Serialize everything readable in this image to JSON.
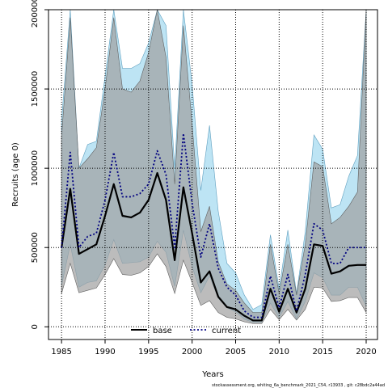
{
  "chart_data": {
    "type": "area",
    "xlabel": "Years",
    "ylabel": "Recruits (age 0)",
    "xlim": [
      1983.5,
      2021.3
    ],
    "ylim": [
      -80000,
      2000000
    ],
    "xticks": [
      1985,
      1990,
      1995,
      2000,
      2005,
      2010,
      2015,
      2020
    ],
    "yticks": [
      0,
      500000,
      1000000,
      1500000,
      2000000
    ],
    "grid": true,
    "legend_position": "bottom-center",
    "x": [
      1985,
      1986,
      1987,
      1988,
      1989,
      1990,
      1991,
      1992,
      1993,
      1994,
      1995,
      1996,
      1997,
      1998,
      1999,
      2000,
      2001,
      2002,
      2003,
      2004,
      2005,
      2006,
      2007,
      2008,
      2009,
      2010,
      2011,
      2012,
      2013,
      2014,
      2015,
      2016,
      2017,
      2018,
      2019,
      2020
    ],
    "series": [
      {
        "name": "base",
        "color": "#000000",
        "band_color": "#a0a0a0",
        "values": [
          500000,
          870000,
          460000,
          490000,
          520000,
          700000,
          900000,
          700000,
          690000,
          720000,
          800000,
          970000,
          800000,
          420000,
          880000,
          590000,
          280000,
          350000,
          190000,
          125000,
          110000,
          70000,
          40000,
          40000,
          240000,
          95000,
          240000,
          90000,
          240000,
          520000,
          510000,
          335000,
          350000,
          385000,
          390000,
          390000
        ],
        "lower": [
          210000,
          400000,
          215000,
          230000,
          245000,
          330000,
          430000,
          330000,
          325000,
          340000,
          380000,
          460000,
          380000,
          210000,
          420000,
          280000,
          135000,
          165000,
          90000,
          60000,
          50000,
          32000,
          20000,
          20000,
          110000,
          45000,
          110000,
          42000,
          110000,
          250000,
          245000,
          160000,
          165000,
          185000,
          185000,
          90000
        ],
        "upper": [
          1200000,
          1950000,
          1000000,
          1060000,
          1130000,
          1500000,
          1950000,
          1500000,
          1480000,
          1550000,
          1730000,
          2000000,
          1700000,
          900000,
          1900000,
          1280000,
          600000,
          760000,
          410000,
          270000,
          230000,
          150000,
          90000,
          90000,
          520000,
          210000,
          520000,
          200000,
          520000,
          1040000,
          1010000,
          650000,
          690000,
          760000,
          850000,
          2000000
        ]
      },
      {
        "name": "current",
        "color": "#000080",
        "band_color": "#87ceeb",
        "values": [
          500000,
          1100000,
          500000,
          570000,
          590000,
          800000,
          1100000,
          820000,
          820000,
          840000,
          900000,
          1110000,
          960000,
          500000,
          1220000,
          780000,
          440000,
          650000,
          370000,
          250000,
          200000,
          100000,
          60000,
          60000,
          320000,
          120000,
          330000,
          100000,
          330000,
          650000,
          610000,
          400000,
          400000,
          500000,
          500000,
          500000
        ],
        "lower": [
          260000,
          520000,
          250000,
          280000,
          290000,
          390000,
          550000,
          400000,
          405000,
          410000,
          440000,
          540000,
          470000,
          255000,
          610000,
          380000,
          215000,
          320000,
          180000,
          120000,
          95000,
          48000,
          28000,
          28000,
          150000,
          58000,
          160000,
          48000,
          160000,
          340000,
          310000,
          200000,
          200000,
          250000,
          250000,
          130000
        ],
        "upper": [
          1300000,
          2000000,
          1000000,
          1150000,
          1170000,
          1580000,
          2000000,
          1630000,
          1630000,
          1660000,
          1790000,
          2000000,
          1900000,
          1000000,
          2000000,
          1530000,
          860000,
          1270000,
          730000,
          400000,
          340000,
          200000,
          110000,
          140000,
          580000,
          240000,
          610000,
          210000,
          600000,
          1210000,
          1120000,
          750000,
          770000,
          950000,
          1080000,
          2000000
        ]
      }
    ]
  },
  "footer": "stockassessment.org,  whiting_6a_benchmark_2021_C54, r13933 ,  git:  c28bdc2a44ad"
}
